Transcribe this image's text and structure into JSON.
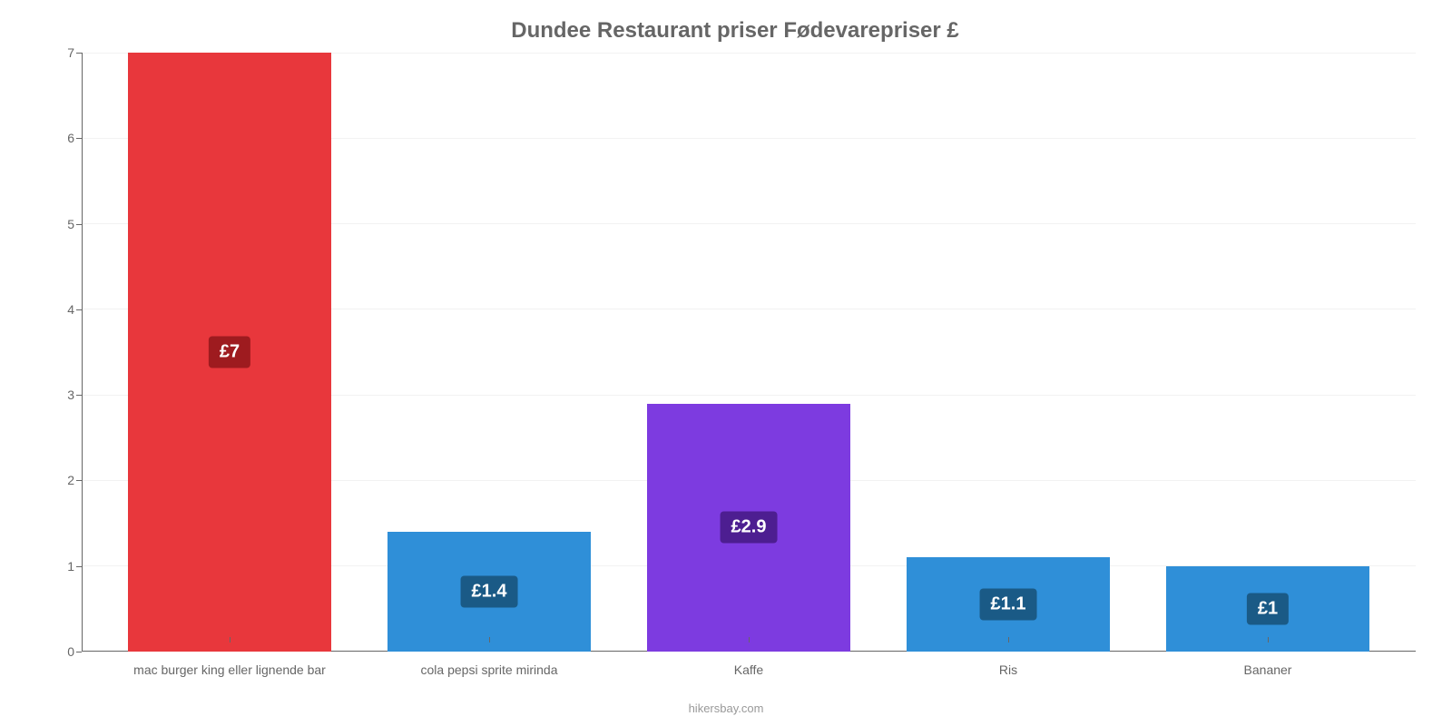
{
  "chart": {
    "type": "bar",
    "title": "Dundee Restaurant priser Fødevarepriser £",
    "title_color": "#666666",
    "title_fontsize": 24,
    "background_color": "#ffffff",
    "grid_color": "#f2f2f2",
    "axis_color": "#666666",
    "tick_color": "#666666",
    "ylim": [
      0,
      7
    ],
    "ytick_step": 1,
    "yticks": [
      0,
      1,
      2,
      3,
      4,
      5,
      6,
      7
    ],
    "bar_width_pct": 80,
    "categories": [
      "mac burger king eller lignende bar",
      "cola pepsi sprite mirinda",
      "Kaffe",
      "Ris",
      "Bananer"
    ],
    "values": [
      7,
      1.4,
      2.9,
      1.1,
      1
    ],
    "value_labels": [
      "£7",
      "£1.4",
      "£2.9",
      "£1.1",
      "£1"
    ],
    "bar_colors": [
      "#e8373c",
      "#2f8fd8",
      "#7d3be0",
      "#2f8fd8",
      "#2f8fd8"
    ],
    "label_bg_colors": [
      "#9e1b1f",
      "#1a5a86",
      "#4d1e91",
      "#1a5a86",
      "#1a5a86"
    ],
    "label_text_color": "#ffffff",
    "label_fontsize": 20,
    "attribution": "hikersbay.com",
    "attribution_color": "#999999"
  }
}
